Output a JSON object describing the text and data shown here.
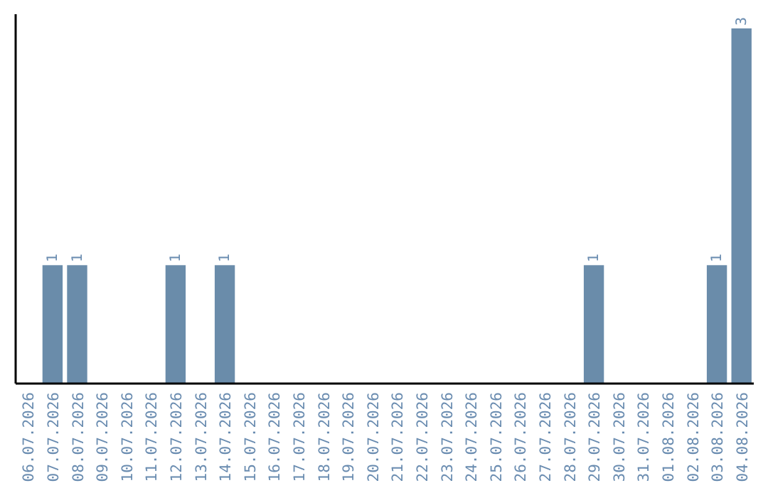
{
  "chart_data": {
    "type": "bar",
    "categories": [
      "06.07.2026",
      "07.07.2026",
      "08.07.2026",
      "09.07.2026",
      "10.07.2026",
      "11.07.2026",
      "12.07.2026",
      "13.07.2026",
      "14.07.2026",
      "15.07.2026",
      "16.07.2026",
      "17.07.2026",
      "18.07.2026",
      "19.07.2026",
      "20.07.2026",
      "21.07.2026",
      "22.07.2026",
      "23.07.2026",
      "24.07.2026",
      "25.07.2026",
      "26.07.2026",
      "27.07.2026",
      "28.07.2026",
      "29.07.2026",
      "30.07.2026",
      "31.07.2026",
      "01.08.2026",
      "02.08.2026",
      "03.08.2026",
      "04.08.2026"
    ],
    "values": [
      0,
      1,
      1,
      0,
      0,
      0,
      1,
      0,
      1,
      0,
      0,
      0,
      0,
      0,
      0,
      0,
      0,
      0,
      0,
      0,
      0,
      0,
      0,
      1,
      0,
      0,
      0,
      0,
      1,
      3
    ],
    "value_labels": [
      null,
      "1",
      "1",
      null,
      null,
      null,
      "1",
      null,
      "1",
      null,
      null,
      null,
      null,
      null,
      null,
      null,
      null,
      null,
      null,
      null,
      null,
      null,
      null,
      "1",
      null,
      null,
      null,
      null,
      "1",
      "3"
    ],
    "color": "#6a8caa",
    "grid": false
  }
}
